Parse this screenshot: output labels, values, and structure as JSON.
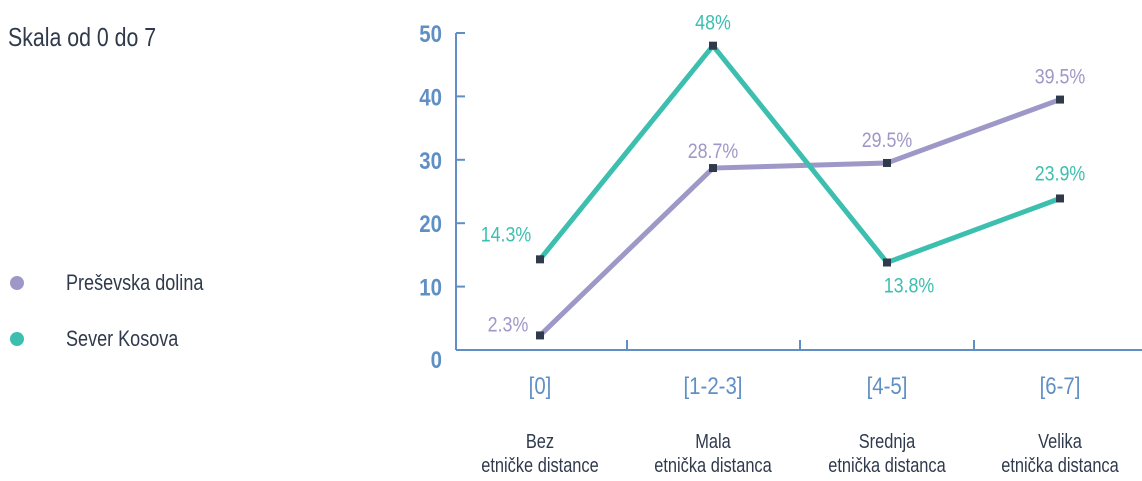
{
  "title": "Skala od 0 do 7",
  "colors": {
    "axis": "#5f8fc4",
    "text": "#2f3a4c",
    "marker": "#2f3a4c"
  },
  "legend": [
    {
      "label": "Preševska dolina",
      "color": "#9e98c8"
    },
    {
      "label": "Sever Kosova",
      "color": "#3dbfb0"
    }
  ],
  "chart_data": {
    "type": "line",
    "title": "Skala od 0 do 7",
    "categories": [
      "[0]",
      "[1-2-3]",
      "[4-5]",
      "[6-7]"
    ],
    "category_descriptions": [
      [
        "Bez",
        "etničke distance"
      ],
      [
        "Mala",
        "etnička distanca"
      ],
      [
        "Srednja",
        "etnička distanca"
      ],
      [
        "Velika",
        "etnička distanca"
      ]
    ],
    "yticks": [
      "0",
      "10",
      "20",
      "30",
      "40",
      "50"
    ],
    "ylim": [
      0,
      50
    ],
    "grid": false,
    "legend_position": "left",
    "series": [
      {
        "name": "Preševska dolina",
        "color": "#9e98c8",
        "values": [
          2.3,
          28.7,
          29.5,
          39.5
        ],
        "labels": [
          "2.3%",
          "28.7%",
          "29.5%",
          "39.5%"
        ]
      },
      {
        "name": "Sever Kosova",
        "color": "#3dbfb0",
        "values": [
          14.3,
          48,
          13.8,
          23.9
        ],
        "labels": [
          "14.3%",
          "48%",
          "13.8%",
          "23.9%"
        ]
      }
    ]
  }
}
